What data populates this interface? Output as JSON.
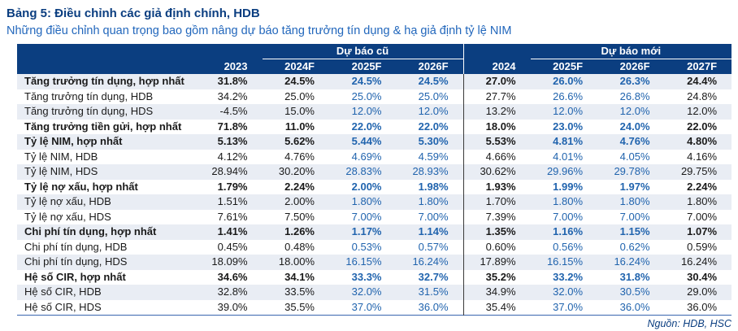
{
  "title": "Bảng 5: Điều chỉnh các giả định chính, HDB",
  "subtitle": "Những điều chỉnh quan trọng bao gồm nâng dự báo tăng trưởng tín dụng & hạ giả định tỷ lệ NIM",
  "source": "Nguồn: HDB, HSC",
  "colors": {
    "navy": "#0B3E80",
    "stripe": "#E9EDF4",
    "value_blue": "#2164AE",
    "value_black": "#1A1A1A",
    "subtitle_blue": "#2267BC",
    "bottom_border": "#3A67B0",
    "body_sep": "#3A3A3A"
  },
  "table": {
    "group_old": "Dự báo cũ",
    "group_new": "Dự báo mới",
    "columns": [
      {
        "label": "2023",
        "color": "black"
      },
      {
        "label": "2024F",
        "color": "black"
      },
      {
        "label": "2025F",
        "color": "blue"
      },
      {
        "label": "2026F",
        "color": "blue"
      },
      {
        "label": "2024",
        "color": "black"
      },
      {
        "label": "2025F",
        "color": "blue"
      },
      {
        "label": "2026F",
        "color": "blue"
      },
      {
        "label": "2027F",
        "color": "black"
      }
    ],
    "rows": [
      {
        "label": "Tăng trưởng tín dụng, hợp nhất",
        "bold": true,
        "values": [
          "31.8%",
          "24.5%",
          "24.5%",
          "24.5%",
          "27.0%",
          "26.0%",
          "26.3%",
          "24.4%"
        ]
      },
      {
        "label": "Tăng trưởng tín dụng, HDB",
        "bold": false,
        "values": [
          "34.2%",
          "25.0%",
          "25.0%",
          "25.0%",
          "27.7%",
          "26.6%",
          "26.8%",
          "24.8%"
        ]
      },
      {
        "label": "Tăng trưởng tín dụng, HDS",
        "bold": false,
        "values": [
          "-4.5%",
          "15.0%",
          "12.0%",
          "12.0%",
          "13.2%",
          "12.0%",
          "12.0%",
          "12.0%"
        ]
      },
      {
        "label": "Tăng trưởng tiền gửi, hợp nhất",
        "bold": true,
        "values": [
          "71.8%",
          "11.0%",
          "22.0%",
          "22.0%",
          "18.0%",
          "23.0%",
          "24.0%",
          "22.0%"
        ]
      },
      {
        "label": "Tỷ lệ NIM, hợp nhất",
        "bold": true,
        "values": [
          "5.13%",
          "5.62%",
          "5.44%",
          "5.30%",
          "5.53%",
          "4.81%",
          "4.76%",
          "4.80%"
        ]
      },
      {
        "label": "Tỷ lệ NIM, HDB",
        "bold": false,
        "values": [
          "4.12%",
          "4.76%",
          "4.69%",
          "4.59%",
          "4.66%",
          "4.01%",
          "4.05%",
          "4.16%"
        ]
      },
      {
        "label": "Tỷ lệ NIM, HDS",
        "bold": false,
        "values": [
          "28.94%",
          "30.20%",
          "28.83%",
          "28.93%",
          "30.62%",
          "29.96%",
          "29.78%",
          "29.75%"
        ]
      },
      {
        "label": "Tỷ lệ nợ xấu, hợp nhất",
        "bold": true,
        "values": [
          "1.79%",
          "2.24%",
          "2.00%",
          "1.98%",
          "1.93%",
          "1.99%",
          "1.97%",
          "2.24%"
        ]
      },
      {
        "label": "Tỷ lệ nợ xấu, HDB",
        "bold": false,
        "values": [
          "1.51%",
          "2.00%",
          "1.80%",
          "1.80%",
          "1.70%",
          "1.80%",
          "1.80%",
          "1.80%"
        ]
      },
      {
        "label": "Tỷ lệ nợ xấu, HDS",
        "bold": false,
        "values": [
          "7.61%",
          "7.50%",
          "7.00%",
          "7.00%",
          "7.39%",
          "7.00%",
          "7.00%",
          "7.00%"
        ]
      },
      {
        "label": "Chi phí tín dụng, hợp nhất",
        "bold": true,
        "values": [
          "1.41%",
          "1.26%",
          "1.17%",
          "1.14%",
          "1.35%",
          "1.16%",
          "1.15%",
          "1.07%"
        ]
      },
      {
        "label": "Chi phí tín dụng, HDB",
        "bold": false,
        "values": [
          "0.45%",
          "0.48%",
          "0.53%",
          "0.57%",
          "0.60%",
          "0.56%",
          "0.62%",
          "0.59%"
        ]
      },
      {
        "label": "Chi phí tín dụng, HDS",
        "bold": false,
        "values": [
          "18.09%",
          "18.00%",
          "16.15%",
          "16.24%",
          "17.89%",
          "16.15%",
          "16.24%",
          "16.24%"
        ]
      },
      {
        "label": "Hệ số CIR, hợp nhất",
        "bold": true,
        "values": [
          "34.6%",
          "34.1%",
          "33.3%",
          "32.7%",
          "35.2%",
          "33.2%",
          "31.8%",
          "30.4%"
        ]
      },
      {
        "label": "Hệ số CIR, HDB",
        "bold": false,
        "values": [
          "32.8%",
          "33.5%",
          "32.0%",
          "31.5%",
          "34.9%",
          "32.0%",
          "30.5%",
          "29.0%"
        ]
      },
      {
        "label": "Hệ số CIR, HDS",
        "bold": false,
        "values": [
          "39.0%",
          "35.5%",
          "37.0%",
          "36.0%",
          "35.4%",
          "37.0%",
          "36.0%",
          "36.0%"
        ]
      }
    ]
  }
}
